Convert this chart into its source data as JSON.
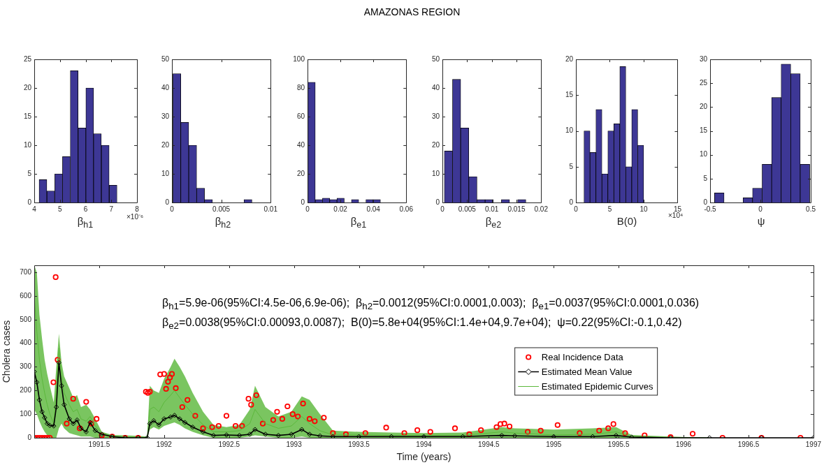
{
  "chart_data": [
    {
      "type": "histogram",
      "xlabel": "β$_{h1}$",
      "annotations": [
        "×10⁻⁶"
      ],
      "color": "#3d3795",
      "bins": [
        4.19,
        4.49,
        4.8,
        5.1,
        5.4,
        5.71,
        6.01,
        6.31,
        6.61,
        6.92,
        7.22
      ],
      "values": [
        4,
        2,
        5,
        8,
        23,
        13,
        20,
        12,
        10,
        3
      ],
      "xlim": [
        4,
        8
      ],
      "xticks": [
        4,
        5,
        6,
        7,
        8
      ],
      "ylim": [
        0,
        25
      ],
      "yticks": [
        0,
        5,
        10,
        15,
        20,
        25
      ]
    },
    {
      "type": "histogram",
      "xlabel": "β$_{h2}$",
      "color": "#3d3795",
      "bins": [
        0.0001,
        0.0009,
        0.0017,
        0.0025,
        0.0033,
        0.0041,
        0.0049,
        0.0057,
        0.0065,
        0.0073,
        0.0081
      ],
      "values": [
        45,
        28,
        20,
        5,
        1,
        0,
        0,
        0,
        0,
        1
      ],
      "xlim": [
        0,
        0.01
      ],
      "xticks": [
        0,
        0.005,
        0.01
      ],
      "ylim": [
        0,
        50
      ],
      "yticks": [
        0,
        10,
        20,
        30,
        40,
        50
      ]
    },
    {
      "type": "histogram",
      "title": "AMAZONAS REGION",
      "xlabel": "β$_{e1}$",
      "color": "#3d3795",
      "bins": [
        0.0003,
        0.0047,
        0.0091,
        0.0135,
        0.0179,
        0.0223,
        0.0267,
        0.0311,
        0.0355,
        0.0399,
        0.0443
      ],
      "values": [
        84,
        2,
        3,
        2,
        3,
        0,
        2,
        0,
        2,
        2
      ],
      "xlim": [
        0,
        0.06
      ],
      "xticks": [
        0,
        0.02,
        0.04,
        0.06
      ],
      "ylim": [
        0,
        100
      ],
      "yticks": [
        0,
        20,
        40,
        60,
        80,
        100
      ]
    },
    {
      "type": "histogram",
      "xlabel": "β$_{e2}$",
      "color": "#3d3795",
      "bins": [
        0.0004,
        0.00205,
        0.0037,
        0.00535,
        0.007,
        0.00865,
        0.0103,
        0.01195,
        0.0136,
        0.01525,
        0.0169
      ],
      "values": [
        18,
        43,
        26,
        9,
        1,
        1,
        0,
        1,
        0,
        1
      ],
      "xlim": [
        0,
        0.02
      ],
      "xticks": [
        0,
        0.005,
        0.01,
        0.015,
        0.02
      ],
      "ylim": [
        0,
        50
      ],
      "yticks": [
        0,
        10,
        20,
        30,
        40,
        50
      ]
    },
    {
      "type": "histogram",
      "xlabel": "B(0)",
      "annotations": [
        "×10⁴"
      ],
      "color": "#3d3795",
      "bins": [
        1.2,
        2.08,
        2.96,
        3.84,
        4.72,
        5.6,
        6.48,
        7.36,
        8.24,
        9.12,
        10
      ],
      "values": [
        10,
        7,
        13,
        4,
        10,
        11,
        19,
        5,
        13,
        8
      ],
      "xlim": [
        0,
        15
      ],
      "xticks": [
        0,
        5,
        10,
        15
      ],
      "ylim": [
        0,
        20
      ],
      "yticks": [
        0,
        5,
        10,
        15,
        20
      ]
    },
    {
      "type": "histogram",
      "xlabel": "ψ",
      "color": "#3d3795",
      "bins": [
        -0.456,
        -0.361,
        -0.267,
        -0.172,
        -0.078,
        0.017,
        0.112,
        0.206,
        0.301,
        0.395,
        0.49
      ],
      "values": [
        2,
        0,
        0,
        1,
        3,
        8,
        22,
        29,
        27,
        8
      ],
      "xlim": [
        -0.5,
        0.5
      ],
      "xticks": [
        -0.5,
        0,
        0.5
      ],
      "ylim": [
        0,
        30
      ],
      "yticks": [
        0,
        5,
        10,
        15,
        20,
        25,
        30
      ]
    },
    {
      "type": "line",
      "xlabel": "Time (years)",
      "ylabel": "Cholera cases",
      "legend": "center",
      "annotations": [
        "β$_{h1}$=5.9e-06(95%CI:4.5e-06,6.9e-06);  β$_{h2}$=0.0012(95%CI:0.0001,0.003);  β$_{e1}$=0.0037(95%CI:0.0001,0.036)",
        "β$_{e2}$=0.0038(95%CI:0.00093,0.0087);  B(0)=5.8e+04(95%CI:1.4e+04,9.7e+04);  ψ=0.22(95%CI:-0.1,0.42)"
      ],
      "x": [
        1991.0,
        1991.02,
        1991.04,
        1991.06,
        1991.08,
        1991.1,
        1991.12,
        1991.15,
        1991.17,
        1991.19,
        1991.21,
        1991.23,
        1991.27,
        1991.3,
        1991.33,
        1991.36,
        1991.4,
        1991.43,
        1991.47,
        1991.52,
        1991.6,
        1991.7,
        1991.8,
        1991.87,
        1991.89,
        1991.92,
        1991.96,
        1992.0,
        1992.05,
        1992.08,
        1992.12,
        1992.16,
        1992.22,
        1992.3,
        1992.38,
        1992.48,
        1992.58,
        1992.66,
        1992.7,
        1992.78,
        1992.88,
        1992.98,
        1993.06,
        1993.12,
        1993.2,
        1993.3,
        1993.5,
        1993.75,
        1994.0,
        1994.3,
        1994.6,
        1994.7,
        1995.0,
        1995.3,
        1995.48,
        1995.6,
        1995.9,
        1996.2,
        1996.6,
        1997.0
      ],
      "series": [
        {
          "name": "Real Incidence Data",
          "type": "scatter",
          "color": "#ff0000",
          "marker": "circle",
          "x": [
            1991.0,
            1991.02,
            1991.04,
            1991.06,
            1991.08,
            1991.1,
            1991.12,
            1991.148,
            1991.165,
            1991.18,
            1991.25,
            1991.3,
            1991.35,
            1991.4,
            1991.44,
            1991.48,
            1991.52,
            1991.6,
            1991.7,
            1991.8,
            1991.86,
            1991.875,
            1991.89,
            1991.97,
            1992.0,
            1992.015,
            1992.03,
            1992.045,
            1992.06,
            1992.09,
            1992.14,
            1992.18,
            1992.24,
            1992.3,
            1992.37,
            1992.42,
            1992.48,
            1992.55,
            1992.6,
            1992.65,
            1992.67,
            1992.71,
            1992.76,
            1992.84,
            1992.87,
            1992.91,
            1992.95,
            1992.99,
            1993.03,
            1993.07,
            1993.12,
            1993.16,
            1993.23,
            1993.3,
            1993.4,
            1993.55,
            1993.71,
            1993.85,
            1993.95,
            1994.05,
            1994.24,
            1994.35,
            1994.44,
            1994.56,
            1994.59,
            1994.62,
            1994.66,
            1994.8,
            1994.9,
            1995.03,
            1995.2,
            1995.35,
            1995.42,
            1995.46,
            1995.55,
            1995.7,
            1995.9,
            1996.07,
            1996.3,
            1996.6,
            1996.9
          ],
          "values": [
            0,
            0,
            0,
            0,
            0,
            0,
            0,
            235,
            680,
            330,
            60,
            165,
            40,
            152,
            60,
            80,
            10,
            5,
            0,
            0,
            195,
            190,
            195,
            268,
            270,
            207,
            237,
            255,
            270,
            210,
            130,
            160,
            93,
            40,
            45,
            50,
            93,
            50,
            50,
            165,
            140,
            180,
            60,
            75,
            110,
            80,
            133,
            100,
            90,
            145,
            80,
            70,
            85,
            20,
            15,
            20,
            43,
            20,
            32,
            25,
            40,
            15,
            32,
            45,
            58,
            60,
            48,
            25,
            30,
            54,
            20,
            30,
            40,
            58,
            20,
            10,
            3,
            17,
            0,
            0,
            0
          ]
        },
        {
          "name": "Estimated Mean Value",
          "color": "#000000",
          "marker": "diamond",
          "values": [
            280,
            235,
            160,
            110,
            85,
            60,
            52,
            50,
            130,
            318,
            220,
            140,
            80,
            60,
            75,
            40,
            25,
            65,
            30,
            15,
            5,
            0,
            0,
            0,
            60,
            72,
            55,
            80,
            88,
            95,
            80,
            65,
            45,
            25,
            10,
            12,
            10,
            15,
            35,
            15,
            10,
            15,
            35,
            15,
            8,
            5,
            5,
            5,
            5,
            5,
            10,
            8,
            5,
            5,
            10,
            3,
            0,
            0,
            0,
            0
          ]
        },
        {
          "name": "Estimated Epidemic Curves",
          "color": "#5cb83c",
          "marker": "none",
          "values": [
            600,
            450,
            330,
            250,
            190,
            140,
            100,
            60,
            200,
            380,
            260,
            190,
            140,
            110,
            120,
            80,
            70,
            90,
            50,
            20,
            8,
            3,
            2,
            0,
            120,
            130,
            110,
            150,
            180,
            200,
            170,
            140,
            100,
            55,
            25,
            25,
            30,
            60,
            120,
            60,
            40,
            50,
            90,
            60,
            30,
            12,
            12,
            10,
            10,
            10,
            25,
            20,
            12,
            15,
            25,
            5,
            2,
            0,
            null,
            null
          ],
          "lower": [
            120,
            100,
            70,
            45,
            25,
            10,
            0,
            0,
            0,
            40,
            60,
            40,
            20,
            15,
            10,
            5,
            5,
            5,
            0,
            0,
            0,
            0,
            0,
            0,
            35,
            45,
            35,
            50,
            60,
            65,
            55,
            40,
            25,
            10,
            0,
            0,
            0,
            5,
            10,
            5,
            0,
            0,
            5,
            0,
            0,
            0,
            0,
            0,
            0,
            0,
            0,
            0,
            0,
            0,
            0,
            0,
            0,
            0,
            0,
            0
          ],
          "upper": [
            730,
            700,
            520,
            420,
            330,
            270,
            220,
            150,
            300,
            440,
            320,
            260,
            210,
            170,
            180,
            130,
            140,
            120,
            80,
            25,
            12,
            10,
            8,
            5,
            220,
            200,
            190,
            250,
            300,
            335,
            300,
            260,
            190,
            110,
            55,
            45,
            55,
            120,
            220,
            130,
            90,
            110,
            175,
            160,
            100,
            30,
            25,
            22,
            20,
            22,
            45,
            40,
            35,
            40,
            45,
            12,
            5,
            0,
            0,
            0
          ]
        }
      ],
      "xlim": [
        1991,
        1997
      ],
      "xticks": [
        1991.5,
        1992,
        1992.5,
        1993,
        1993.5,
        1994,
        1994.5,
        1995,
        1995.5,
        1996,
        1996.5,
        1997
      ],
      "ylim": [
        0,
        730
      ],
      "yticks": [
        0,
        100,
        200,
        300,
        400,
        500,
        600,
        700
      ]
    }
  ]
}
